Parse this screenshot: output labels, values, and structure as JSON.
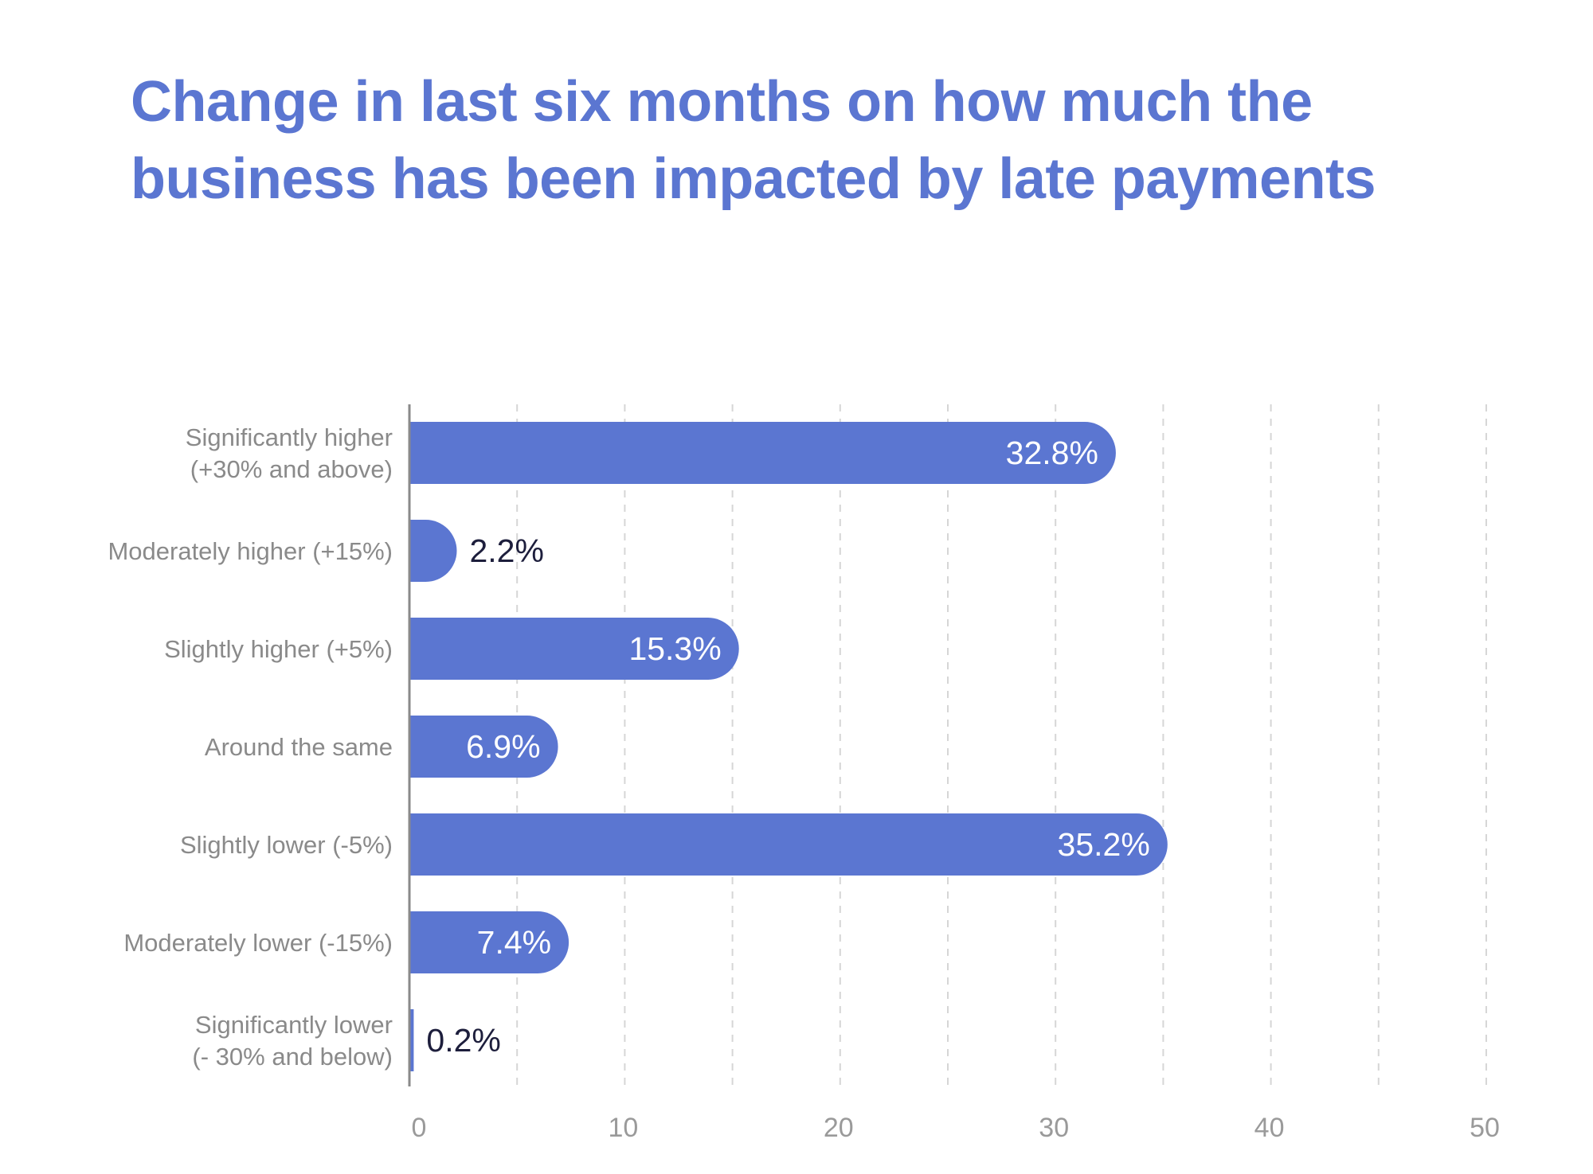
{
  "chart_data": {
    "type": "bar",
    "orientation": "horizontal",
    "title_lines": [
      "Change in last six months on how much the",
      "business has been impacted by late payments"
    ],
    "categories": [
      [
        "Significantly higher",
        "(+30% and above)"
      ],
      [
        "Moderately higher (+15%)"
      ],
      [
        "Slightly higher (+5%)"
      ],
      [
        "Around the same"
      ],
      [
        "Slightly lower (-5%)"
      ],
      [
        "Moderately lower (-15%)"
      ],
      [
        "Significantly lower",
        "(- 30% and below)"
      ]
    ],
    "values": [
      32.8,
      2.2,
      15.3,
      6.9,
      35.2,
      7.4,
      0.2
    ],
    "value_labels": [
      "32.8%",
      "2.2%",
      "15.3%",
      "6.9%",
      "35.2%",
      "7.4%",
      "0.2%"
    ],
    "xlim": [
      0,
      50
    ],
    "x_ticks": [
      0,
      10,
      20,
      30,
      40,
      50
    ],
    "x_tick_labels": [
      "0",
      "10",
      "20",
      "30",
      "40",
      "50"
    ],
    "gridlines": "dashed vertical every 5",
    "legend": "none",
    "colors": {
      "bar": "#5b76d1",
      "title": "#5b76d1",
      "label_inside": "#ffffff",
      "label_outside": "#1d1e3c",
      "category_text": "#8a8a8a",
      "tick_text": "#9a9a9a",
      "grid": "#d6d6d6",
      "axis": "#8a8a8a"
    }
  }
}
